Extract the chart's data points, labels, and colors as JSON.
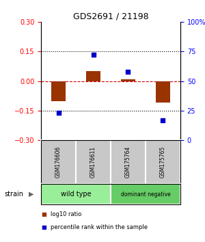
{
  "title": "GDS2691 / 21198",
  "samples": [
    "GSM176606",
    "GSM176611",
    "GSM175764",
    "GSM175765"
  ],
  "log10_ratio": [
    -0.1,
    0.05,
    0.01,
    -0.11
  ],
  "percentile_rank": [
    23,
    72,
    58,
    17
  ],
  "groups": [
    {
      "name": "wild type",
      "indices": [
        0,
        1
      ],
      "color": "#99EE99"
    },
    {
      "name": "dominant negative",
      "indices": [
        2,
        3
      ],
      "color": "#66CC66"
    }
  ],
  "ylim_left": [
    -0.3,
    0.3
  ],
  "ylim_right": [
    0,
    100
  ],
  "yticks_left": [
    -0.3,
    -0.15,
    0,
    0.15,
    0.3
  ],
  "yticks_right": [
    0,
    25,
    50,
    75,
    100
  ],
  "bar_color": "#993300",
  "dot_color": "#0000CC",
  "hline_color": "#CC0000",
  "background_color": "white",
  "strain_label": "strain",
  "legend_items": [
    {
      "label": "log10 ratio",
      "color": "#993300"
    },
    {
      "label": "percentile rank within the sample",
      "color": "#0000CC"
    }
  ]
}
